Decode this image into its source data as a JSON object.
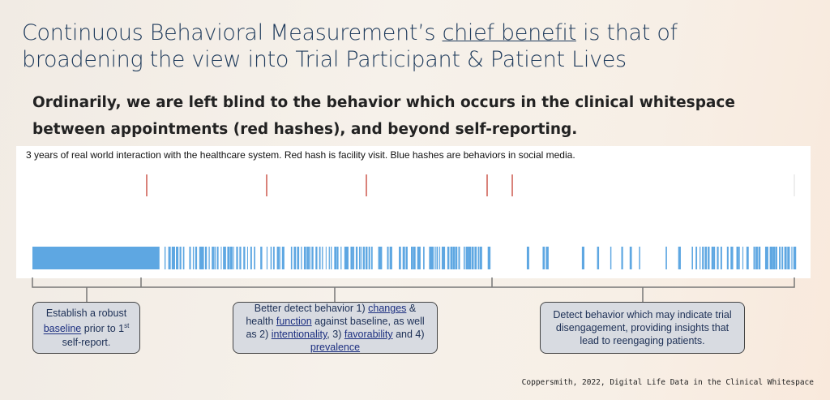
{
  "title": {
    "parts": [
      "Continuous Behavioral Measurement’s ",
      "chief benefit",
      " is that of",
      "broadening the view into Trial Participant & Patient Lives"
    ]
  },
  "subtitle": {
    "lines": [
      "Ordinarily, we are left blind to the behavior which occurs in the clinical whitespace",
      "between appointments (red hashes), and beyond self-reporting."
    ]
  },
  "timeline": {
    "caption": "3 years of real world interaction with the healthcare system. Red hash is facility visit. Blue hashes are behaviors in social media."
  },
  "boxes": [
    {
      "parts": [
        "Establish a robust",
        "baseline",
        " prior to 1",
        "st",
        " self-report."
      ]
    },
    {
      "parts": [
        "Better detect behavior 1) ",
        "changes",
        " & health ",
        "function",
        " against baseline, as well as 2) ",
        "intentionality",
        ",  3) ",
        "favorability",
        " and 4) ",
        "prevalence"
      ]
    },
    {
      "parts": [
        "Detect behavior which may indicate trial disengagement, providing insights that lead to reengaging patients."
      ]
    }
  ],
  "citation": "Coppersmith, 2022, Digital Life Data in the Clinical Whitespace"
}
